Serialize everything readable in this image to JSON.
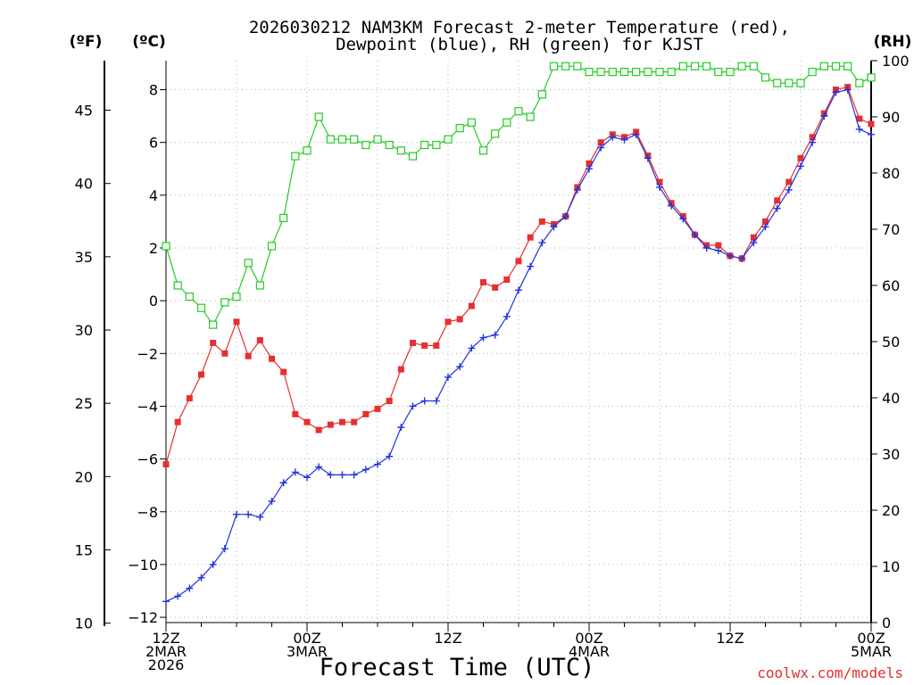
{
  "chart_data": {
    "type": "line",
    "title_line1": "2026030212 NAM3KM Forecast 2-meter Temperature (red),",
    "title_line2": "Dewpoint (blue), RH (green) for KJST",
    "xlabel": "Forecast Time (UTC)",
    "watermark": "coolwx.com/models",
    "left_outer_axis": {
      "unit": "(ºF)",
      "ticks": [
        10,
        15,
        20,
        25,
        30,
        35,
        40,
        45
      ]
    },
    "left_axis": {
      "unit": "(ºC)",
      "ylim": [
        -12.2,
        9.1
      ],
      "ticks": [
        -12,
        -10,
        -8,
        -6,
        -4,
        -2,
        0,
        2,
        4,
        6,
        8
      ],
      "tick_labels": [
        "−12",
        "−10",
        "−8",
        "−6",
        "−4",
        "−2",
        "0",
        "2",
        "4",
        "6",
        "8"
      ]
    },
    "right_axis": {
      "unit": "(RH)",
      "ylim": [
        0,
        100
      ],
      "ticks": [
        0,
        10,
        20,
        30,
        40,
        50,
        60,
        70,
        80,
        90,
        100
      ]
    },
    "x_range_hours": [
      0,
      60
    ],
    "x_ticks": [
      {
        "hour": 0,
        "lines": [
          "12Z",
          "2MAR",
          "2026"
        ]
      },
      {
        "hour": 12,
        "lines": [
          "00Z",
          "3MAR"
        ]
      },
      {
        "hour": 24,
        "lines": [
          "12Z"
        ]
      },
      {
        "hour": 36,
        "lines": [
          "00Z",
          "4MAR"
        ]
      },
      {
        "hour": 48,
        "lines": [
          "12Z"
        ]
      },
      {
        "hour": 60,
        "lines": [
          "00Z",
          "5MAR"
        ]
      }
    ],
    "series": [
      {
        "name": "Temperature",
        "unit": "C",
        "color": "#e63030",
        "marker": "filled-square",
        "values": [
          -6.2,
          -4.6,
          -3.7,
          -2.8,
          -1.6,
          -2.0,
          -0.8,
          -2.1,
          -1.5,
          -2.2,
          -2.7,
          -4.3,
          -4.6,
          -4.9,
          -4.7,
          -4.6,
          -4.6,
          -4.3,
          -4.1,
          -3.8,
          -2.6,
          -1.6,
          -1.7,
          -1.7,
          -0.8,
          -0.7,
          -0.2,
          0.7,
          0.5,
          0.8,
          1.5,
          2.4,
          3.0,
          2.9,
          3.2,
          4.3,
          5.2,
          6.0,
          6.3,
          6.2,
          6.4,
          5.5,
          4.5,
          3.7,
          3.2,
          2.5,
          2.1,
          2.1,
          1.7,
          1.6,
          2.4,
          3.0,
          3.8,
          4.5,
          5.4,
          6.2,
          7.1,
          8.0,
          8.1,
          6.9,
          6.7
        ]
      },
      {
        "name": "Dewpoint",
        "unit": "C",
        "color": "#2233dd",
        "marker": "plus",
        "values": [
          -11.4,
          -11.2,
          -10.9,
          -10.5,
          -10.0,
          -9.4,
          -8.1,
          -8.1,
          -8.2,
          -7.6,
          -6.9,
          -6.5,
          -6.7,
          -6.3,
          -6.6,
          -6.6,
          -6.6,
          -6.4,
          -6.2,
          -5.9,
          -4.8,
          -4.0,
          -3.8,
          -3.8,
          -2.9,
          -2.5,
          -1.8,
          -1.4,
          -1.3,
          -0.6,
          0.4,
          1.3,
          2.2,
          2.8,
          3.2,
          4.2,
          5.0,
          5.8,
          6.2,
          6.1,
          6.3,
          5.4,
          4.3,
          3.6,
          3.1,
          2.5,
          2.0,
          1.9,
          1.7,
          1.6,
          2.2,
          2.8,
          3.5,
          4.2,
          5.1,
          6.0,
          7.0,
          7.9,
          8.0,
          6.5,
          6.3
        ]
      },
      {
        "name": "RH",
        "unit": "%",
        "color": "#22cc22",
        "marker": "open-square",
        "values": [
          67,
          60,
          58,
          56,
          53,
          57,
          58,
          64,
          60,
          67,
          72,
          83,
          84,
          90,
          86,
          86,
          86,
          85,
          86,
          85,
          84,
          83,
          85,
          85,
          86,
          88,
          89,
          84,
          87,
          89,
          91,
          90,
          94,
          99,
          99,
          99,
          98,
          98,
          98,
          98,
          98,
          98,
          98,
          98,
          99,
          99,
          99,
          98,
          98,
          99,
          99,
          97,
          96,
          96,
          96,
          98,
          99,
          99,
          99,
          96,
          97
        ]
      }
    ]
  }
}
